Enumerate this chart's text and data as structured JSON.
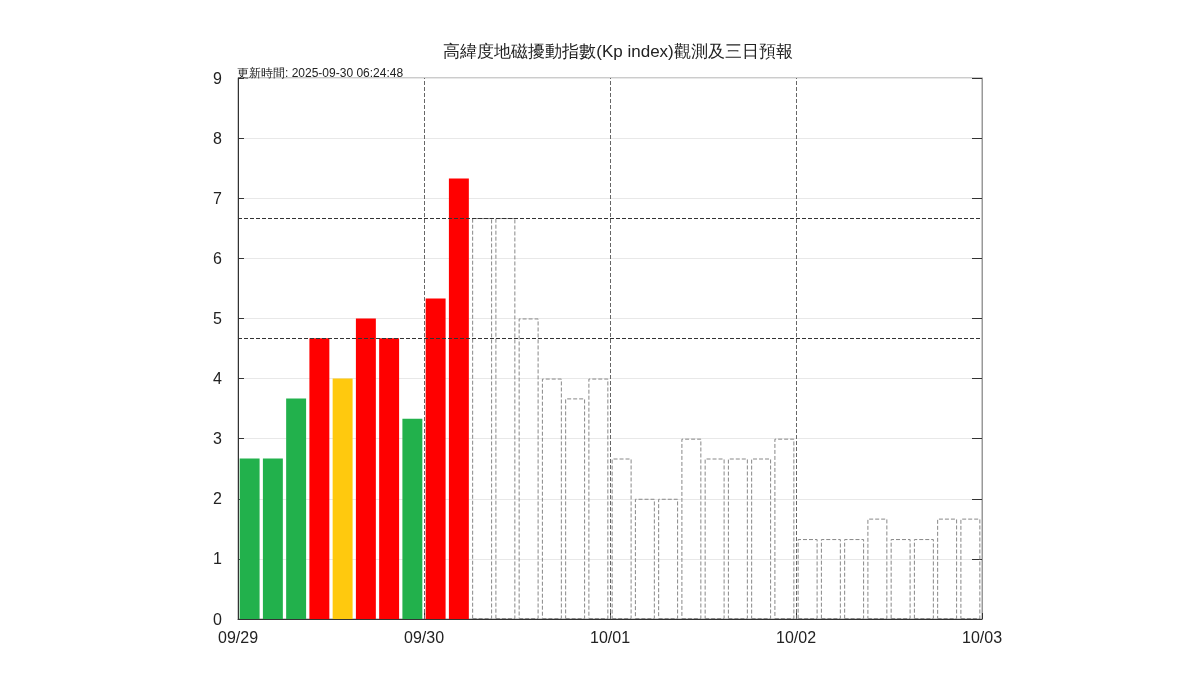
{
  "chart_data": {
    "type": "bar",
    "title": "高緯度地磁擾動指數(Kp index)觀測及三日預報",
    "subtitle": "更新時間: 2025-09-30 06:24:48",
    "xlim": [
      "2025-09-29T00:00",
      "2025-10-03T00:00"
    ],
    "xticks": [
      {
        "value": "2025-09-29T00:00",
        "label": "09/29"
      },
      {
        "value": "2025-09-30T00:00",
        "label": "09/30"
      },
      {
        "value": "2025-10-01T00:00",
        "label": "10/01"
      },
      {
        "value": "2025-10-02T00:00",
        "label": "10/02"
      },
      {
        "value": "2025-10-03T00:00",
        "label": "10/03"
      }
    ],
    "ylim": [
      0,
      9
    ],
    "yticks": [
      0,
      1,
      2,
      3,
      4,
      5,
      6,
      7,
      8,
      9
    ],
    "grid": "y",
    "series": [
      {
        "x": [
          "2025-09-29T01:30",
          "2025-09-29T04:30",
          "2025-09-29T07:30",
          "2025-09-29T10:30",
          "2025-09-29T13:30",
          "2025-09-29T16:30",
          "2025-09-29T19:30",
          "2025-09-29T22:30",
          "2025-09-30T01:30",
          "2025-09-30T04:30"
        ],
        "values": [
          2.67,
          2.67,
          3.67,
          4.67,
          4.0,
          5.0,
          4.67,
          3.33,
          5.33,
          7.33
        ],
        "colors": [
          "#22b14c",
          "#22b14c",
          "#22b14c",
          "#ff0000",
          "#ffc90e",
          "#ff0000",
          "#ff0000",
          "#22b14c",
          "#ff0000",
          "#ff0000"
        ]
      },
      {
        "x": [
          "2025-09-30T07:30",
          "2025-09-30T10:30",
          "2025-09-30T13:30",
          "2025-09-30T16:30",
          "2025-09-30T19:30",
          "2025-09-30T22:30",
          "2025-10-01T01:30",
          "2025-10-01T04:30",
          "2025-10-01T07:30",
          "2025-10-01T10:30",
          "2025-10-01T13:30",
          "2025-10-01T16:30",
          "2025-10-01T19:30",
          "2025-10-01T22:30",
          "2025-10-02T01:30",
          "2025-10-02T04:30",
          "2025-10-02T07:30",
          "2025-10-02T10:30",
          "2025-10-02T13:30",
          "2025-10-02T16:30",
          "2025-10-02T19:30",
          "2025-10-02T22:30"
        ],
        "values": [
          6.67,
          6.67,
          5.0,
          4.0,
          3.67,
          4.0,
          2.67,
          2.0,
          2.0,
          3.0,
          2.67,
          2.67,
          2.67,
          3.0,
          1.33,
          1.33,
          1.33,
          1.67,
          1.33,
          1.33,
          1.67,
          1.67
        ],
        "color": "#888888",
        "line_style": "dashed"
      }
    ],
    "ref_lines": [
      {
        "axis": "y",
        "value": 4.67,
        "color": "#333333",
        "line_style": "dashed"
      },
      {
        "axis": "y",
        "value": 6.67,
        "color": "#333333",
        "line_style": "dashed"
      },
      {
        "axis": "x",
        "value": "2025-09-30T00:00",
        "color": "#666666",
        "line_style": "dashed"
      },
      {
        "axis": "x",
        "value": "2025-10-01T00:00",
        "color": "#666666",
        "line_style": "dashed"
      },
      {
        "axis": "x",
        "value": "2025-10-02T00:00",
        "color": "#666666",
        "line_style": "dashed"
      }
    ]
  }
}
